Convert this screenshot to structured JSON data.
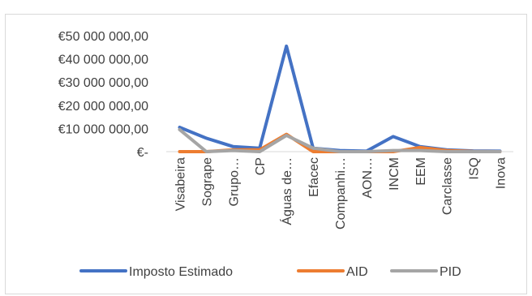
{
  "chart_data": {
    "type": "line",
    "title": "",
    "xlabel": "",
    "ylabel": "",
    "categories": [
      "Visabeira",
      "Sogrape",
      "Grupo…",
      "CP",
      "Águas de…",
      "Efacec",
      "Companhi…",
      "AON…",
      "INCM",
      "EEM",
      "Carclasse",
      "ISQ",
      "Inova"
    ],
    "yticks": [
      0,
      10000000,
      20000000,
      30000000,
      40000000,
      50000000
    ],
    "ytick_labels": [
      "€-",
      "€10 000 000,00",
      "€20 000 000,00",
      "€30 000 000,00",
      "€40 000 000,00",
      "€50 000 000,00"
    ],
    "ylim": [
      0,
      50000000
    ],
    "grid": false,
    "legend": "bottom",
    "series": [
      {
        "name": "Imposto Estimado",
        "color": "#4472C4",
        "values": [
          10500000,
          5800000,
          2200000,
          1500000,
          45500000,
          1500000,
          500000,
          200000,
          6500000,
          2200000,
          800000,
          300000,
          200000
        ]
      },
      {
        "name": "AID",
        "color": "#ED7D31",
        "values": [
          0,
          0,
          800000,
          800000,
          7500000,
          0,
          0,
          0,
          0,
          1800000,
          500000,
          100000,
          0
        ]
      },
      {
        "name": "PID",
        "color": "#A5A5A5",
        "values": [
          9500000,
          0,
          500000,
          0,
          7000000,
          1500000,
          0,
          0,
          500000,
          500000,
          0,
          0,
          0
        ]
      }
    ]
  }
}
